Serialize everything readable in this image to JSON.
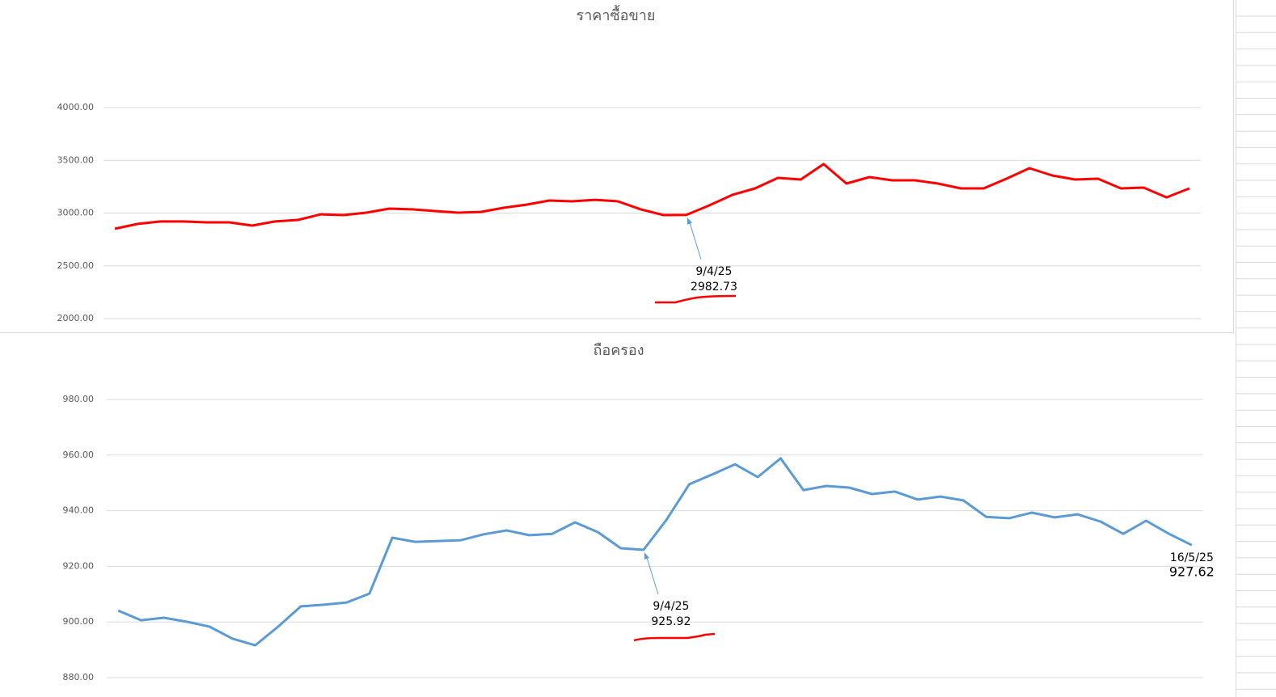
{
  "chart_data": [
    {
      "type": "line",
      "title": "ราคาซื้อขาย",
      "categories": [
        null,
        null,
        null,
        null,
        null,
        null,
        null,
        null,
        null,
        null,
        null,
        null,
        null,
        null,
        null,
        null,
        null,
        null,
        null,
        null,
        null,
        null,
        null,
        null,
        null,
        "9/4/25",
        null,
        null,
        null,
        null,
        null,
        null,
        null,
        null,
        null,
        null,
        null,
        null,
        null,
        null,
        null,
        null,
        null,
        null,
        null,
        null,
        null,
        null
      ],
      "series": [
        {
          "color": "#ff0000",
          "values": [
            2851,
            2897,
            2920,
            2920,
            2912,
            2912,
            2881,
            2920,
            2935,
            2988,
            2981,
            3004,
            3042,
            3035,
            3019,
            3004,
            3011,
            3050,
            3080,
            3119,
            3111,
            3126,
            3111,
            3035,
            2981,
            2982.73,
            3073,
            3172,
            3234,
            3333,
            3318,
            3464,
            3280,
            3341,
            3310,
            3310,
            3280,
            3234,
            3234,
            3326,
            3425,
            3356,
            3318,
            3326,
            3234,
            3241,
            3149,
            3234
          ],
          "value_labels": [
            null,
            null,
            null,
            null,
            null,
            null,
            null,
            null,
            null,
            null,
            null,
            null,
            null,
            null,
            null,
            null,
            null,
            null,
            null,
            null,
            null,
            null,
            null,
            null,
            null,
            "2982.73",
            null,
            null,
            null,
            null,
            null,
            null,
            null,
            null,
            null,
            null,
            null,
            null,
            null,
            null,
            null,
            null,
            null,
            null,
            null,
            null,
            null,
            null
          ]
        }
      ],
      "ylim": [
        2000,
        4000
      ],
      "yticks": [
        {
          "value": 2000,
          "label": "2000.00"
        },
        {
          "value": 2500,
          "label": "2500.00"
        },
        {
          "value": 3000,
          "label": "3000.00"
        },
        {
          "value": 3500,
          "label": "3500.00"
        },
        {
          "value": 4000,
          "label": "4000.00"
        }
      ],
      "grid": true
    },
    {
      "type": "line",
      "title": "ถือครอง",
      "categories": [
        null,
        null,
        null,
        null,
        null,
        null,
        null,
        null,
        null,
        null,
        null,
        null,
        null,
        null,
        null,
        null,
        null,
        null,
        null,
        null,
        null,
        null,
        null,
        "9/4/25",
        null,
        null,
        null,
        null,
        null,
        null,
        null,
        null,
        null,
        null,
        null,
        null,
        null,
        null,
        null,
        null,
        null,
        null,
        null,
        null,
        null,
        null,
        null,
        "16/5/25"
      ],
      "series": [
        {
          "color": "#5b9bd5",
          "values": [
            904.1,
            900.6,
            901.5,
            900.1,
            898.3,
            894.0,
            891.6,
            898.3,
            905.6,
            906.2,
            907.0,
            910.2,
            930.3,
            928.8,
            929.1,
            929.4,
            931.5,
            932.9,
            931.2,
            931.7,
            935.8,
            932.3,
            926.5,
            925.92,
            936.7,
            949.5,
            953.0,
            956.7,
            952.1,
            958.8,
            947.4,
            948.9,
            948.3,
            946.0,
            946.9,
            944.0,
            945.1,
            943.7,
            937.8,
            937.3,
            939.3,
            937.6,
            938.7,
            936.1,
            931.7,
            936.4,
            931.7,
            927.62
          ],
          "value_labels": [
            null,
            null,
            null,
            null,
            null,
            null,
            null,
            null,
            null,
            null,
            null,
            null,
            null,
            null,
            null,
            null,
            null,
            null,
            null,
            null,
            null,
            null,
            null,
            "925.92",
            null,
            null,
            null,
            null,
            null,
            null,
            null,
            null,
            null,
            null,
            null,
            null,
            null,
            null,
            null,
            null,
            null,
            null,
            null,
            null,
            null,
            null,
            null,
            "927.62"
          ]
        }
      ],
      "ylim": [
        880,
        980
      ],
      "yticks": [
        {
          "value": 880,
          "label": "880.00"
        },
        {
          "value": 900,
          "label": "900.00"
        },
        {
          "value": 920,
          "label": "920.00"
        },
        {
          "value": 940,
          "label": "940.00"
        },
        {
          "value": 960,
          "label": "960.00"
        },
        {
          "value": 980,
          "label": "980.00"
        }
      ],
      "grid": true
    }
  ]
}
